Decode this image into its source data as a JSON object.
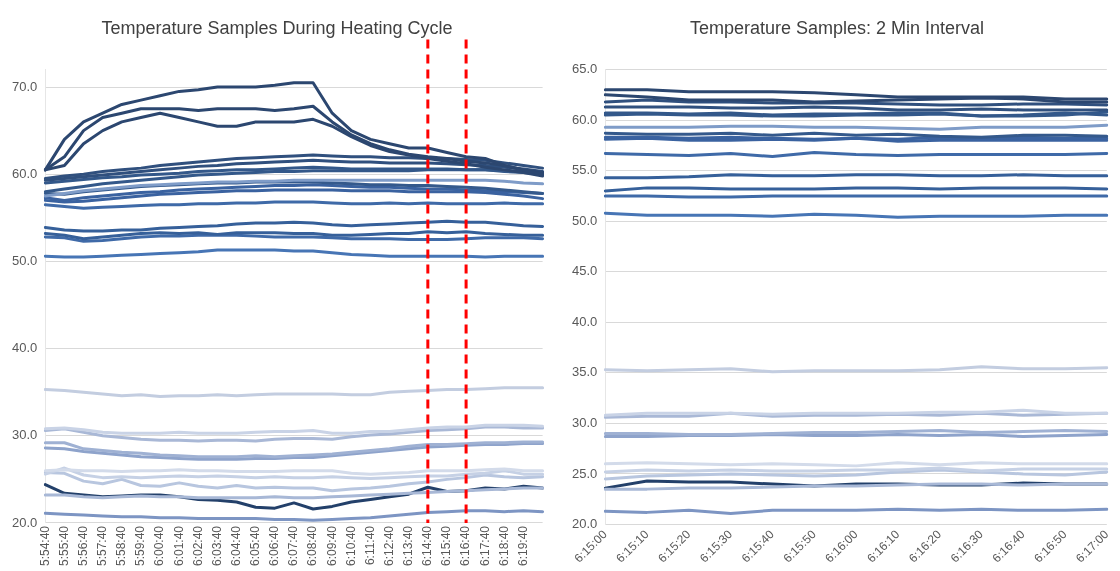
{
  "chart_data": [
    {
      "type": "line",
      "title": "Temperature Samples During Heating Cycle",
      "marker": "none",
      "grid": "y",
      "legend": false,
      "categories": [
        "5:54:40",
        "5:55:40",
        "5:56:40",
        "5:57:40",
        "5:58:40",
        "5:59:40",
        "6:00:40",
        "6:01:40",
        "6:02:40",
        "6:03:40",
        "6:04:40",
        "6:05:40",
        "6:06:40",
        "6:07:40",
        "6:08:40",
        "6:09:40",
        "6:10:40",
        "6:11:40",
        "6:12:40",
        "6:13:40",
        "6:14:40",
        "6:15:40",
        "6:16:40",
        "6:17:40",
        "6:18:40",
        "6:19:40",
        null
      ],
      "ylim": [
        20,
        72
      ],
      "yticks": [
        {
          "value": 20,
          "label": "20.0"
        },
        {
          "value": 30,
          "label": "30.0"
        },
        {
          "value": 40,
          "label": "40.0"
        },
        {
          "value": 50,
          "label": "50.0"
        },
        {
          "value": 60,
          "label": "60.0"
        },
        {
          "value": 70,
          "label": "70.0"
        }
      ],
      "ref_lines": [
        {
          "axis": "x",
          "value": "6:14:40",
          "color": "#ff0000",
          "line_style": "dashed"
        },
        {
          "axis": "x",
          "value": "6:16:40",
          "color": "#ff0000",
          "line_style": "dashed"
        }
      ],
      "series": [
        {
          "color": "#2c4770",
          "values": [
            60.5,
            64,
            66,
            67,
            68,
            68.5,
            69,
            69.5,
            69.7,
            70,
            70,
            70,
            70.2,
            70.5,
            70.5,
            67,
            65,
            64,
            63.5,
            63,
            63,
            62.5,
            62,
            61.8,
            61,
            60.5,
            60
          ]
        },
        {
          "color": "#2c4770",
          "values": [
            60.5,
            62,
            65,
            66.5,
            67,
            67.5,
            67.5,
            67.5,
            67.3,
            67.5,
            67.5,
            67.5,
            67.3,
            67.5,
            67.8,
            66,
            64.5,
            63.5,
            62.8,
            62.3,
            62,
            61.8,
            61.5,
            61.3,
            61,
            60.5,
            60.2
          ]
        },
        {
          "color": "#2c4770",
          "values": [
            60.5,
            61,
            63.5,
            65,
            66,
            66.5,
            67,
            66.5,
            66,
            65.5,
            65.5,
            66,
            66,
            66,
            66.3,
            65.5,
            64.3,
            63.3,
            62.6,
            62.2,
            61.8,
            61.5,
            61.2,
            60.8,
            60.5,
            60.2,
            59.8
          ]
        },
        {
          "color": "#30507e",
          "values": [
            59.5,
            59.8,
            60,
            60.3,
            60.5,
            60.7,
            61,
            61.2,
            61.4,
            61.6,
            61.8,
            61.9,
            62,
            62.1,
            62.2,
            62.1,
            62,
            62,
            61.9,
            61.9,
            61.8,
            61.8,
            61.7,
            61.6,
            61.3,
            61,
            60.7
          ]
        },
        {
          "color": "#30507e",
          "values": [
            59.3,
            59.5,
            59.7,
            59.9,
            60.1,
            60.3,
            60.5,
            60.7,
            60.9,
            61,
            61.2,
            61.3,
            61.4,
            61.5,
            61.6,
            61.5,
            61.4,
            61.4,
            61.3,
            61.3,
            61.3,
            61.2,
            61.1,
            61,
            60.8,
            60.6,
            60.3
          ]
        },
        {
          "color": "#33588a",
          "values": [
            59,
            59.2,
            59.4,
            59.6,
            59.7,
            59.9,
            60,
            60.1,
            60.3,
            60.4,
            60.5,
            60.5,
            60.6,
            60.7,
            60.8,
            60.7,
            60.6,
            60.6,
            60.6,
            60.6,
            60.6,
            60.6,
            60.5,
            60.5,
            60.3,
            60.2,
            60
          ]
        },
        {
          "color": "#33588a",
          "values": [
            58,
            58.3,
            58.6,
            58.9,
            59.1,
            59.3,
            59.5,
            59.7,
            59.9,
            60,
            60.1,
            60.2,
            60.3,
            60.3,
            60.4,
            60.4,
            60.4,
            60.4,
            60.4,
            60.4,
            60.5,
            60.5,
            60.5,
            60.5,
            60.4,
            60.3,
            60.2
          ]
        },
        {
          "color": "#7f9cc8",
          "values": [
            57.5,
            57.8,
            58.1,
            58.3,
            58.5,
            58.7,
            58.8,
            58.9,
            59,
            59.1,
            59.1,
            59.2,
            59.2,
            59.3,
            59.3,
            59.3,
            59.3,
            59.3,
            59.3,
            59.3,
            59.3,
            59.3,
            59.3,
            59.3,
            59.2,
            59,
            58.9
          ]
        },
        {
          "color": "#34598c",
          "values": [
            57.8,
            57.7,
            58,
            58.2,
            58.4,
            58.6,
            58.7,
            58.8,
            58.9,
            59,
            59,
            59.1,
            59.1,
            59.1,
            59.1,
            59,
            58.9,
            58.8,
            58.8,
            58.7,
            58.7,
            58.6,
            58.5,
            58.4,
            58.2,
            58,
            57.8
          ]
        },
        {
          "color": "#3a62a0",
          "values": [
            57.3,
            57,
            57.3,
            57.5,
            57.7,
            57.9,
            58,
            58.2,
            58.3,
            58.4,
            58.5,
            58.6,
            58.7,
            58.7,
            58.8,
            58.7,
            58.6,
            58.5,
            58.5,
            58.4,
            58.3,
            58.3,
            58.2,
            58.1,
            58,
            57.9,
            57.8
          ]
        },
        {
          "color": "#3a62a0",
          "values": [
            57,
            56.8,
            56.9,
            57.1,
            57.3,
            57.5,
            57.7,
            57.8,
            57.9,
            58,
            58.1,
            58.1,
            58.2,
            58.2,
            58.2,
            58.2,
            58.1,
            58.1,
            58.1,
            58,
            58,
            58,
            58,
            57.9,
            57.7,
            57.5,
            57.2
          ]
        },
        {
          "color": "#3f6aa8",
          "values": [
            56.5,
            56.3,
            56.1,
            56.2,
            56.3,
            56.4,
            56.5,
            56.5,
            56.6,
            56.6,
            56.7,
            56.7,
            56.8,
            56.8,
            56.8,
            56.7,
            56.6,
            56.6,
            56.7,
            56.6,
            56.7,
            56.6,
            56.6,
            56.6,
            56.7,
            56.6,
            56.6
          ]
        },
        {
          "color": "#36609a",
          "values": [
            53.9,
            53.6,
            53.5,
            53.5,
            53.6,
            53.6,
            53.8,
            53.9,
            54,
            54.1,
            54.3,
            54.4,
            54.4,
            54.5,
            54.4,
            54.2,
            54.1,
            54.2,
            54.3,
            54.4,
            54.5,
            54.6,
            54.5,
            54.5,
            54.3,
            54.1,
            54
          ]
        },
        {
          "color": "#36609a",
          "values": [
            53.2,
            53,
            52.6,
            52.8,
            53,
            53.2,
            53.3,
            53.2,
            53.3,
            53.1,
            53.3,
            53.3,
            53.3,
            53.2,
            53.2,
            53,
            53,
            53.1,
            53.2,
            53.2,
            53.4,
            53.3,
            53.4,
            53.2,
            53.1,
            53,
            53
          ]
        },
        {
          "color": "#3f6aa8",
          "values": [
            52.8,
            52.7,
            52.3,
            52.4,
            52.6,
            52.8,
            52.9,
            52.9,
            53,
            53,
            53,
            52.9,
            52.8,
            52.8,
            52.8,
            52.7,
            52.6,
            52.6,
            52.6,
            52.5,
            52.5,
            52.5,
            52.6,
            52.7,
            52.7,
            52.7,
            52.6
          ]
        },
        {
          "color": "#4775b5",
          "values": [
            50.6,
            50.5,
            50.5,
            50.6,
            50.7,
            50.8,
            50.9,
            51,
            51.1,
            51.3,
            51.3,
            51.3,
            51.3,
            51.2,
            51.2,
            51,
            50.8,
            50.7,
            50.6,
            50.6,
            50.6,
            50.6,
            50.6,
            50.5,
            50.6,
            50.6,
            50.6
          ]
        },
        {
          "color": "#c3cde0",
          "values": [
            35.3,
            35.2,
            35,
            34.8,
            34.6,
            34.7,
            34.5,
            34.6,
            34.6,
            34.7,
            34.6,
            34.7,
            34.8,
            34.8,
            34.8,
            34.8,
            34.7,
            34.7,
            35,
            35.1,
            35.2,
            35.3,
            35.3,
            35.4,
            35.5,
            35.5,
            35.5
          ]
        },
        {
          "color": "#c9d3e6",
          "values": [
            30.8,
            30.9,
            30.7,
            30.4,
            30.3,
            30.3,
            30.3,
            30.4,
            30.3,
            30.3,
            30.3,
            30.4,
            30.5,
            30.5,
            30.6,
            30.3,
            30.3,
            30.5,
            30.5,
            30.7,
            30.9,
            31,
            31,
            31.2,
            31.2,
            31.2,
            31.1
          ]
        },
        {
          "color": "#a9b8d6",
          "values": [
            30.6,
            30.8,
            30.4,
            30,
            29.8,
            29.6,
            29.5,
            29.5,
            29.4,
            29.5,
            29.5,
            29.4,
            29.6,
            29.7,
            29.7,
            29.6,
            29.9,
            30.1,
            30.2,
            30.4,
            30.6,
            30.7,
            30.8,
            31,
            31,
            30.9,
            30.9
          ]
        },
        {
          "color": "#9fb1d3",
          "values": [
            29.2,
            29.2,
            28.5,
            28.3,
            28.1,
            28,
            27.8,
            27.7,
            27.6,
            27.6,
            27.6,
            27.7,
            27.6,
            27.7,
            27.8,
            27.9,
            28.1,
            28.3,
            28.5,
            28.8,
            29,
            29,
            29.1,
            29.2,
            29.2,
            29.3,
            29.3
          ]
        },
        {
          "color": "#8ea3cb",
          "values": [
            28.6,
            28.5,
            28.2,
            28,
            27.8,
            27.6,
            27.5,
            27.4,
            27.3,
            27.3,
            27.3,
            27.4,
            27.4,
            27.5,
            27.5,
            27.7,
            27.9,
            28.1,
            28.3,
            28.5,
            28.7,
            28.8,
            28.9,
            29,
            29,
            29.1,
            29.1
          ]
        },
        {
          "color": "#d3dbea",
          "values": [
            26,
            26.1,
            26,
            26,
            25.9,
            26,
            26,
            26.1,
            26,
            26,
            25.9,
            25.9,
            25.9,
            26,
            26,
            26,
            25.7,
            25.6,
            25.7,
            25.8,
            26,
            26,
            26,
            26.1,
            26.2,
            26,
            26
          ]
        },
        {
          "color": "#c6d1e5",
          "values": [
            25.6,
            26.3,
            25.5,
            25.2,
            25.3,
            25.2,
            25.3,
            25.4,
            25.3,
            25.4,
            25.3,
            25.2,
            25.3,
            25.2,
            25.2,
            25.3,
            25.2,
            25.1,
            25.2,
            25.3,
            25.4,
            25.4,
            25.6,
            25.7,
            26,
            25.6,
            25.6
          ]
        },
        {
          "color": "#b8c6df",
          "values": [
            25.8,
            25.7,
            24.8,
            24.5,
            25,
            24.3,
            24.2,
            24.6,
            24.2,
            24,
            24.3,
            24,
            24.1,
            24,
            24,
            23.7,
            23.9,
            24,
            24.2,
            24.5,
            24.7,
            25,
            25.2,
            25.5,
            25.3,
            25.2,
            25.3
          ]
        },
        {
          "color": "#a8b8d6",
          "values": [
            23.2,
            23.2,
            23,
            22.9,
            23,
            23.1,
            23,
            23,
            22.9,
            22.9,
            22.9,
            22.9,
            23,
            22.9,
            22.9,
            23,
            23.1,
            23.2,
            23.3,
            23.4,
            23.5,
            23.6,
            23.7,
            23.8,
            23.9,
            24,
            24
          ]
        },
        {
          "color": "#23406a",
          "values": [
            24.4,
            23.4,
            23.2,
            23,
            23.1,
            23.2,
            23.2,
            23,
            22.7,
            22.6,
            22.4,
            21.8,
            21.7,
            22.3,
            21.6,
            21.9,
            22.4,
            22.7,
            23,
            23.3,
            24.1,
            23.6,
            23.7,
            24,
            23.9,
            24.2,
            24
          ]
        },
        {
          "color": "#7d95c3",
          "values": [
            21.1,
            21,
            20.9,
            20.8,
            20.7,
            20.7,
            20.6,
            20.6,
            20.5,
            20.5,
            20.5,
            20.5,
            20.4,
            20.4,
            20.3,
            20.4,
            20.5,
            20.6,
            20.8,
            21,
            21.2,
            21.3,
            21.4,
            21.4,
            21.3,
            21.4,
            21.3
          ]
        }
      ]
    },
    {
      "type": "line",
      "title": "Temperature Samples: 2 Min Interval",
      "marker": "none",
      "grid": "y",
      "legend": false,
      "categories": [
        "6:15:00",
        "6:15:10",
        "6:15:20",
        "6:15:30",
        "6:15:40",
        "6:15:50",
        "6:16:00",
        "6:16:10",
        "6:16:20",
        "6:16:30",
        "6:16:40",
        "6:16:50",
        "6:17:00"
      ],
      "ylim": [
        20,
        65
      ],
      "yticks": [
        {
          "value": 20,
          "label": "20.0"
        },
        {
          "value": 25,
          "label": "25.0"
        },
        {
          "value": 30,
          "label": "30.0"
        },
        {
          "value": 35,
          "label": "35.0"
        },
        {
          "value": 40,
          "label": "40.0"
        },
        {
          "value": 45,
          "label": "45.0"
        },
        {
          "value": 50,
          "label": "50.0"
        },
        {
          "value": 55,
          "label": "55.0"
        },
        {
          "value": 60,
          "label": "60.0"
        },
        {
          "value": 65,
          "label": "65.0"
        }
      ],
      "series": [
        {
          "color": "#2c4770",
          "values": [
            63,
            63,
            62.8,
            62.8,
            62.8,
            62.7,
            62.5,
            62.3,
            62.3,
            62.3,
            62.3,
            62.1,
            62.1
          ]
        },
        {
          "color": "#2c4770",
          "values": [
            62.5,
            62.3,
            62,
            62,
            62,
            61.8,
            61.9,
            62,
            62.1,
            62.2,
            62.1,
            61.8,
            61.8
          ]
        },
        {
          "color": "#30507e",
          "values": [
            61.8,
            62,
            61.8,
            61.8,
            61.7,
            61.7,
            61.7,
            61.6,
            61.5,
            61.5,
            61.6,
            61.6,
            61.5
          ]
        },
        {
          "color": "#30507e",
          "values": [
            61.3,
            61.3,
            61.3,
            61.2,
            61.2,
            61.3,
            61.2,
            61,
            61,
            61.1,
            61,
            61,
            61
          ]
        },
        {
          "color": "#33588a",
          "values": [
            60.7,
            60.7,
            60.6,
            60.7,
            60.5,
            60.6,
            60.6,
            60.7,
            60.7,
            60.4,
            60.5,
            60.7,
            60.5
          ]
        },
        {
          "color": "#33588a",
          "values": [
            60.5,
            60.6,
            60.5,
            60.5,
            60.4,
            60.4,
            60.5,
            60.5,
            60.6,
            60.4,
            60.4,
            60.5,
            60.8
          ]
        },
        {
          "color": "#7f9cc8",
          "values": [
            59.3,
            59.3,
            59.3,
            59.4,
            59.4,
            59.3,
            59.3,
            59.2,
            59.1,
            59.3,
            59.3,
            59.3,
            59.5
          ]
        },
        {
          "color": "#34598c",
          "values": [
            58.7,
            58.6,
            58.6,
            58.7,
            58.5,
            58.7,
            58.5,
            58.6,
            58.4,
            58.3,
            58.5,
            58.5,
            58.4
          ]
        },
        {
          "color": "#3a62a0",
          "values": [
            58.3,
            58.3,
            58.2,
            58.3,
            58.2,
            58.1,
            58.2,
            58.1,
            58.3,
            58.1,
            58.3,
            58.2,
            58.2
          ]
        },
        {
          "color": "#3a62a0",
          "values": [
            58.1,
            58.2,
            58,
            58,
            58.1,
            58,
            58.2,
            57.9,
            58,
            58,
            58,
            58,
            58
          ]
        },
        {
          "color": "#3f6aa8",
          "values": [
            56.7,
            56.6,
            56.5,
            56.7,
            56.4,
            56.8,
            56.6,
            56.5,
            56.6,
            56.6,
            56.6,
            56.6,
            56.7
          ]
        },
        {
          "color": "#36609a",
          "values": [
            54.3,
            54.3,
            54.4,
            54.6,
            54.5,
            54.5,
            54.6,
            54.6,
            54.5,
            54.5,
            54.6,
            54.5,
            54.5
          ]
        },
        {
          "color": "#36609a",
          "values": [
            53,
            53.3,
            53.3,
            53.2,
            53.2,
            53.2,
            53.3,
            53.3,
            53.2,
            53.3,
            53.3,
            53.3,
            53.2
          ]
        },
        {
          "color": "#3f6aa8",
          "values": [
            52.5,
            52.5,
            52.4,
            52.4,
            52.5,
            52.5,
            52.5,
            52.5,
            52.5,
            52.5,
            52.5,
            52.5,
            52.5
          ]
        },
        {
          "color": "#4775b5",
          "values": [
            50.8,
            50.6,
            50.6,
            50.6,
            50.5,
            50.7,
            50.6,
            50.4,
            50.5,
            50.5,
            50.5,
            50.6,
            50.6
          ]
        },
        {
          "color": "#c3cde0",
          "values": [
            35.3,
            35.2,
            35.3,
            35.4,
            35.1,
            35.2,
            35.2,
            35.2,
            35.3,
            35.6,
            35.4,
            35.4,
            35.5
          ]
        },
        {
          "color": "#c9d3e6",
          "values": [
            30.8,
            31,
            31,
            31,
            30.9,
            31,
            31,
            31,
            31.1,
            31.1,
            31.3,
            31,
            31
          ]
        },
        {
          "color": "#a9b8d6",
          "values": [
            30.6,
            30.7,
            30.7,
            31,
            30.7,
            30.8,
            30.8,
            30.9,
            30.8,
            31,
            30.8,
            30.9,
            31
          ]
        },
        {
          "color": "#9fb1d3",
          "values": [
            29,
            29,
            28.9,
            28.9,
            29,
            29.1,
            29.1,
            29.2,
            29.3,
            29.1,
            29.2,
            29.3,
            29.2
          ]
        },
        {
          "color": "#8ea3cb",
          "values": [
            28.7,
            28.7,
            28.8,
            28.8,
            28.9,
            28.8,
            28.8,
            28.9,
            28.8,
            28.9,
            28.7,
            28.8,
            28.9
          ]
        },
        {
          "color": "#d3dbea",
          "values": [
            26,
            26.1,
            26,
            25.9,
            26,
            25.9,
            25.8,
            26.1,
            25.9,
            26.1,
            26,
            26,
            26
          ]
        },
        {
          "color": "#c6d1e5",
          "values": [
            25.2,
            25.4,
            25.3,
            25.4,
            25.3,
            25.3,
            25.4,
            25.4,
            25.6,
            25.3,
            25.5,
            25.5,
            25.5
          ]
        },
        {
          "color": "#b8c6df",
          "values": [
            24.5,
            24.8,
            24.9,
            25,
            24.9,
            24.8,
            24.9,
            25.2,
            25.4,
            25.2,
            25,
            24.9,
            25.2
          ]
        },
        {
          "color": "#a8b8d6",
          "values": [
            23.5,
            23.5,
            23.6,
            23.6,
            23.7,
            23.8,
            23.8,
            23.9,
            24,
            24,
            23.9,
            24,
            24
          ]
        },
        {
          "color": "#23406a",
          "values": [
            23.6,
            24.3,
            24.2,
            24.2,
            24,
            23.8,
            24,
            24,
            23.9,
            23.9,
            24.1,
            24,
            24
          ]
        },
        {
          "color": "#7d95c3",
          "values": [
            21.3,
            21.2,
            21.4,
            21.1,
            21.4,
            21.4,
            21.4,
            21.5,
            21.4,
            21.5,
            21.4,
            21.4,
            21.5
          ]
        }
      ]
    }
  ]
}
